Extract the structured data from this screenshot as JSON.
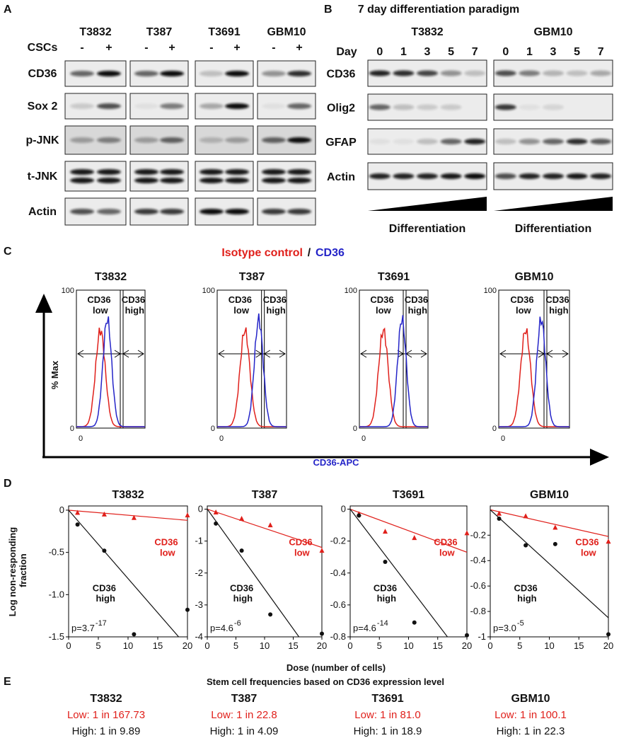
{
  "panel_a": {
    "label": "A",
    "cell_lines": [
      "T3832",
      "T387",
      "T3691",
      "GBM10"
    ],
    "condition_label": "CSCs",
    "conditions": [
      "-",
      "+"
    ],
    "proteins": [
      "CD36",
      "Sox 2",
      "p-JNK",
      "t-JNK",
      "Actin"
    ]
  },
  "panel_b": {
    "label": "B",
    "title": "7 day differentiation paradigm",
    "cell_lines": [
      "T3832",
      "GBM10"
    ],
    "day_label": "Day",
    "days": [
      "0",
      "1",
      "3",
      "5",
      "7"
    ],
    "proteins": [
      "CD36",
      "Olig2",
      "GFAP",
      "Actin"
    ],
    "gradient_label": "Differentiation"
  },
  "panel_c": {
    "label": "C",
    "legend": [
      {
        "name": "Isotype control",
        "color": "#e0201b"
      },
      {
        "name": "CD36",
        "color": "#2424c8"
      }
    ],
    "legend_separator": "/",
    "y_axis_label": "% Max",
    "x_axis_label": "CD36-APC",
    "titles": [
      "T3832",
      "T387",
      "T3691",
      "GBM10"
    ],
    "gates": [
      "CD36 low",
      "CD36 high"
    ],
    "yticks": [
      0,
      100
    ],
    "xticks": [
      0
    ]
  },
  "panel_d": {
    "label": "D",
    "y_axis_label": "Log non-responding fraction",
    "x_axis_label": "Dose (number of cells)"
  },
  "chart_data": [
    {
      "type": "scatter",
      "title": "T3832",
      "xlim": [
        0,
        20
      ],
      "xticks": [
        0,
        5,
        10,
        15,
        20
      ],
      "ylim": [
        -1.5,
        0.05
      ],
      "yticks": [
        0,
        -0.5,
        {
          "value": -1,
          "label": "-1.0"
        },
        -1.5
      ],
      "p_value": "p=3.7",
      "p_exponent": "-17",
      "series": [
        {
          "name": "CD36 low",
          "color": "#e0201b",
          "marker": "triangle",
          "x": [
            1.5,
            6,
            11,
            20
          ],
          "values": [
            -0.03,
            -0.05,
            -0.09,
            -0.06
          ],
          "fit_slope": -0.006
        },
        {
          "name": "CD36 high",
          "color": "#111111",
          "marker": "circle",
          "x": [
            1.5,
            6,
            11,
            20
          ],
          "values": [
            -0.17,
            -0.48,
            -1.47,
            -1.18
          ],
          "fit_slope": -0.081
        }
      ]
    },
    {
      "type": "scatter",
      "title": "T387",
      "xlim": [
        0,
        20
      ],
      "xticks": [
        0,
        5,
        10,
        15,
        20
      ],
      "ylim": [
        -4,
        0.1
      ],
      "yticks": [
        0,
        -1,
        -2,
        -3,
        -4
      ],
      "p_value": "p=4.6",
      "p_exponent": "-6",
      "series": [
        {
          "name": "CD36 low",
          "color": "#e0201b",
          "marker": "triangle",
          "x": [
            1.5,
            6,
            11,
            20
          ],
          "values": [
            -0.1,
            -0.3,
            -0.5,
            -1.3
          ],
          "fit_slope": -0.06
        },
        {
          "name": "CD36 high",
          "color": "#111111",
          "marker": "circle",
          "x": [
            1.5,
            6,
            11,
            20
          ],
          "values": [
            -0.45,
            -1.3,
            -3.3,
            -3.9
          ],
          "fit_slope": -0.25
        }
      ]
    },
    {
      "type": "scatter",
      "title": "T3691",
      "xlim": [
        0,
        20
      ],
      "xticks": [
        0,
        5,
        10,
        15,
        20
      ],
      "ylim": [
        -0.8,
        0.02
      ],
      "yticks": [
        0,
        -0.2,
        -0.4,
        -0.6,
        -0.8
      ],
      "p_value": "p=4.6",
      "p_exponent": "-14",
      "series": [
        {
          "name": "CD36 low",
          "color": "#e0201b",
          "marker": "triangle",
          "x": [
            1.5,
            6,
            11,
            20
          ],
          "values": [
            -0.03,
            -0.14,
            -0.18,
            -0.15
          ],
          "fit_slope": -0.0135
        },
        {
          "name": "CD36 high",
          "color": "#111111",
          "marker": "circle",
          "x": [
            1.5,
            6,
            11,
            20
          ],
          "values": [
            -0.04,
            -0.33,
            -0.71,
            -0.79
          ],
          "fit_slope": -0.048
        }
      ]
    },
    {
      "type": "scatter",
      "title": "GBM10",
      "xlim": [
        0,
        20
      ],
      "xticks": [
        0,
        5,
        10,
        15,
        20
      ],
      "ylim": [
        -1,
        0.03
      ],
      "yticks": [
        -0.2,
        -0.4,
        -0.6,
        -0.8,
        -1
      ],
      "p_value": "p=3.0",
      "p_exponent": "-5",
      "series": [
        {
          "name": "CD36 low",
          "color": "#e0201b",
          "marker": "triangle",
          "x": [
            1.5,
            6,
            11,
            20
          ],
          "values": [
            -0.03,
            -0.05,
            -0.14,
            -0.25
          ],
          "fit_slope": -0.0105
        },
        {
          "name": "CD36 high",
          "color": "#111111",
          "marker": "circle",
          "x": [
            1.5,
            6,
            11,
            20
          ],
          "values": [
            -0.07,
            -0.28,
            -0.27,
            -0.98
          ],
          "fit_slope": -0.0425
        }
      ]
    }
  ],
  "panel_e": {
    "label": "E",
    "title": "Stem cell frequencies based on CD36 expression level",
    "items": [
      {
        "name": "T3832",
        "low": "Low: 1 in 167.73",
        "high": "High: 1 in 9.89"
      },
      {
        "name": "T387",
        "low": "Low: 1 in 22.8",
        "high": "High: 1 in 4.09"
      },
      {
        "name": "T3691",
        "low": "Low: 1 in 81.0",
        "high": "High: 1 in 18.9"
      },
      {
        "name": "GBM10",
        "low": "Low: 1 in 100.1",
        "high": "High: 1 in 22.3"
      }
    ]
  }
}
